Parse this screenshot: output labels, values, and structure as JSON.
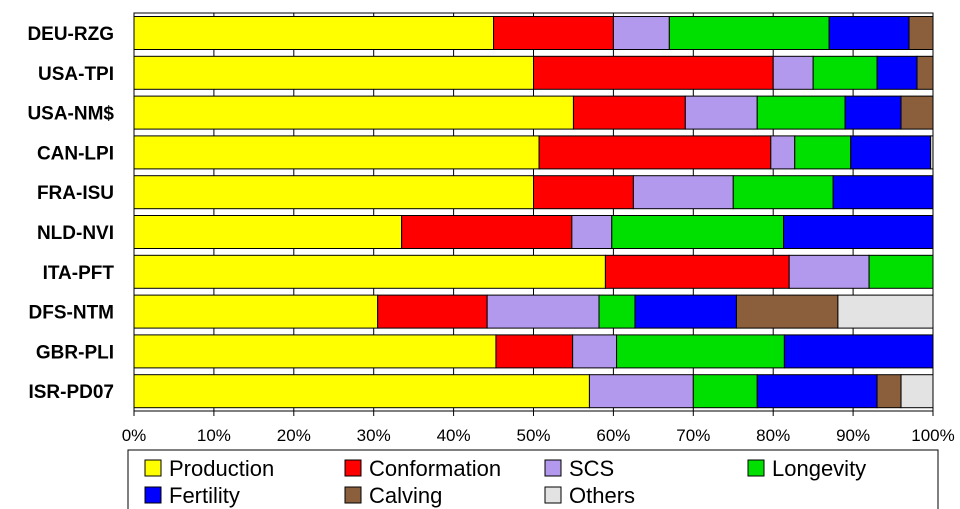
{
  "chart_data": {
    "type": "bar",
    "orientation": "horizontal",
    "stacked": true,
    "percent": true,
    "categories": [
      "DEU-RZG",
      "USA-TPI",
      "USA-NM$",
      "CAN-LPI",
      "FRA-ISU",
      "NLD-NVI",
      "ITA-PFT",
      "DFS-NTM",
      "GBR-PLI",
      "ISR-PD07"
    ],
    "series": [
      {
        "name": "Production",
        "color": "#ffff00",
        "values": [
          45,
          50,
          55,
          50.7,
          50,
          33.5,
          59,
          30.5,
          45.3,
          57
        ]
      },
      {
        "name": "Conformation",
        "color": "#ff0000",
        "values": [
          15,
          30,
          14,
          29,
          12.5,
          21.3,
          23,
          13.7,
          9.6,
          0
        ]
      },
      {
        "name": "SCS",
        "color": "#b399ee",
        "values": [
          7,
          5,
          9,
          3,
          12.5,
          5,
          10,
          14,
          5.5,
          13
        ]
      },
      {
        "name": "Longevity",
        "color": "#00e000",
        "values": [
          20,
          8,
          11,
          7,
          12.5,
          21.5,
          8,
          4.5,
          21,
          8
        ]
      },
      {
        "name": "Fertility",
        "color": "#0000ff",
        "values": [
          10,
          5,
          7,
          10,
          12.5,
          18.7,
          0,
          12.7,
          18.6,
          15
        ]
      },
      {
        "name": "Calving",
        "color": "#8b5e3c",
        "values": [
          3,
          2,
          4,
          0,
          0,
          0,
          0,
          12.7,
          0,
          3
        ]
      },
      {
        "name": "Others",
        "color": "#e3e3e3",
        "values": [
          0,
          0,
          0,
          0.3,
          0,
          0,
          0,
          11.9,
          0,
          4
        ]
      }
    ],
    "xticks": [
      "0%",
      "10%",
      "20%",
      "30%",
      "40%",
      "50%",
      "60%",
      "70%",
      "80%",
      "90%",
      "100%"
    ],
    "xlim": [
      0,
      100
    ],
    "title": "",
    "xlabel": "",
    "ylabel": "",
    "grid": true,
    "legend": {
      "position": "bottom"
    }
  }
}
